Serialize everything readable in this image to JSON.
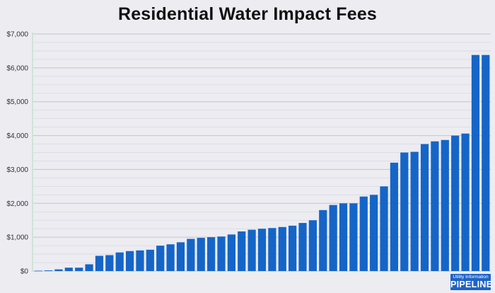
{
  "chart_data": {
    "type": "bar",
    "title": "Residential Water Impact Fees",
    "xlabel": "",
    "ylabel": "",
    "ylim": [
      0,
      7000
    ],
    "y_ticks": [
      "$0",
      "$1,000",
      "$2,000",
      "$3,000",
      "$4,000",
      "$5,000",
      "$6,000",
      "$7,000"
    ],
    "grid": true,
    "bar_color": "#1565c8",
    "values": [
      10,
      20,
      50,
      100,
      100,
      200,
      450,
      470,
      550,
      590,
      610,
      630,
      750,
      790,
      850,
      950,
      980,
      1000,
      1020,
      1080,
      1170,
      1220,
      1250,
      1270,
      1300,
      1340,
      1420,
      1500,
      1800,
      1950,
      2000,
      2000,
      2200,
      2250,
      2500,
      3200,
      3500,
      3520,
      3750,
      3830,
      3870,
      4000,
      4060,
      6380,
      6380
    ]
  },
  "logo": {
    "line1": "Utility Information",
    "line2": "PIPELINE",
    "color": "#1e63c8"
  }
}
